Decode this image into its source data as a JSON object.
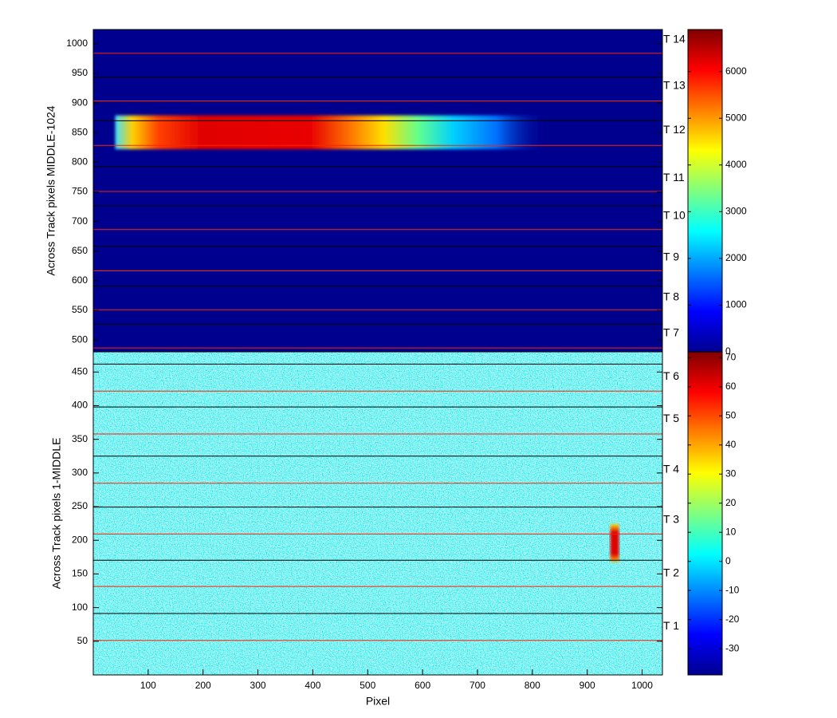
{
  "chart_data": [
    {
      "type": "heatmap",
      "ylabel": "Across Track pixels MIDDLE-1024",
      "xlim": [
        0,
        1037
      ],
      "ylim": [
        480,
        1024
      ],
      "yticks": [
        500,
        550,
        600,
        650,
        700,
        750,
        800,
        850,
        900,
        950,
        1000
      ],
      "colormap": "jet",
      "background": "#00008f",
      "clim": [
        0,
        6900
      ],
      "cticks": [
        0,
        1000,
        2000,
        3000,
        4000,
        5000,
        6000
      ],
      "boundary_lines": [
        {
          "color": "#000000",
          "values": [
            943.7,
            870,
            792.2,
            726.5,
            658.2,
            591.2,
            526.8
          ]
        },
        {
          "color": "#ff2000",
          "values": [
            983.9,
            903.5,
            828.4,
            750.7,
            686.3,
            616.6,
            551,
            486.6
          ]
        }
      ],
      "track_labels": [
        "T 7",
        "T 8",
        "T 9",
        "T 10",
        "T 11",
        "T 12",
        "T 13",
        "T 14"
      ],
      "track_label_y": [
        511,
        572,
        639,
        709,
        773,
        854,
        929,
        1006.7
      ],
      "feature": {
        "x": [
          40,
          830
        ],
        "y": [
          822,
          879
        ]
      }
    },
    {
      "type": "heatmap",
      "ylabel": "Across Track pixels 1-MIDDLE",
      "xlabel": "Pixel",
      "xlim": [
        0,
        1037
      ],
      "ylim": [
        0,
        480
      ],
      "xticks": [
        100,
        200,
        300,
        400,
        500,
        600,
        700,
        800,
        900,
        1000
      ],
      "yticks": [
        50,
        100,
        150,
        200,
        250,
        300,
        350,
        400,
        450
      ],
      "colormap": "jet",
      "background": "#40d8e8",
      "clim": [
        -39,
        72
      ],
      "cticks": [
        -30,
        -20,
        -10,
        0,
        10,
        20,
        30,
        40,
        50,
        60,
        70
      ],
      "boundary_lines": [
        {
          "color": "#000000",
          "values": [
            461.8,
            398.1,
            325,
            249.4,
            170.4,
            91.3
          ]
        },
        {
          "color": "#ff2000",
          "values": [
            421.7,
            358,
            284.8,
            209.3,
            131.4,
            51.2
          ]
        }
      ],
      "track_labels": [
        "T 1",
        "T 2",
        "T 3",
        "T 4",
        "T 5",
        "T 6"
      ],
      "track_label_y": [
        72,
        151,
        230,
        305,
        380,
        443
      ],
      "feature": {
        "x": [
          942,
          958
        ],
        "y": [
          168,
          224
        ]
      }
    }
  ]
}
